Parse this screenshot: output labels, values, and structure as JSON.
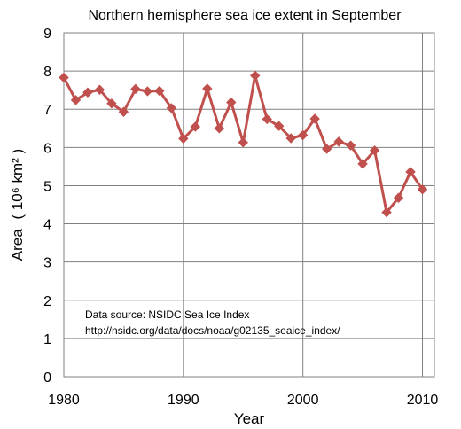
{
  "chart_data": {
    "type": "line",
    "title": "Northern hemisphere sea ice extent in September",
    "xlabel": "Year",
    "ylabel": "Area",
    "ylabel_unit": "( 10⁶ km² )",
    "xlim": [
      1980,
      2011
    ],
    "ylim": [
      0,
      9
    ],
    "xticks": [
      1980,
      1990,
      2000,
      2010
    ],
    "yticks": [
      0,
      1,
      2,
      3,
      4,
      5,
      6,
      7,
      8,
      9
    ],
    "grid": {
      "x": true,
      "y": true
    },
    "series_color": "#c0504d",
    "annotation_lines": [
      "Data source:  NSIDC Sea Ice Index",
      "http://nsidc.org/data/docs/noaa/g02135_seaice_index/"
    ],
    "x": [
      1980,
      1981,
      1982,
      1983,
      1984,
      1985,
      1986,
      1987,
      1988,
      1989,
      1990,
      1991,
      1992,
      1993,
      1994,
      1995,
      1996,
      1997,
      1998,
      1999,
      2000,
      2001,
      2002,
      2003,
      2004,
      2005,
      2006,
      2007,
      2008,
      2009,
      2010
    ],
    "y": [
      7.83,
      7.24,
      7.44,
      7.51,
      7.15,
      6.93,
      7.53,
      7.47,
      7.48,
      7.03,
      6.23,
      6.54,
      7.54,
      6.5,
      7.18,
      6.13,
      7.88,
      6.74,
      6.56,
      6.24,
      6.32,
      6.75,
      5.96,
      6.15,
      6.05,
      5.57,
      5.92,
      4.3,
      4.68,
      5.36,
      4.9
    ]
  }
}
